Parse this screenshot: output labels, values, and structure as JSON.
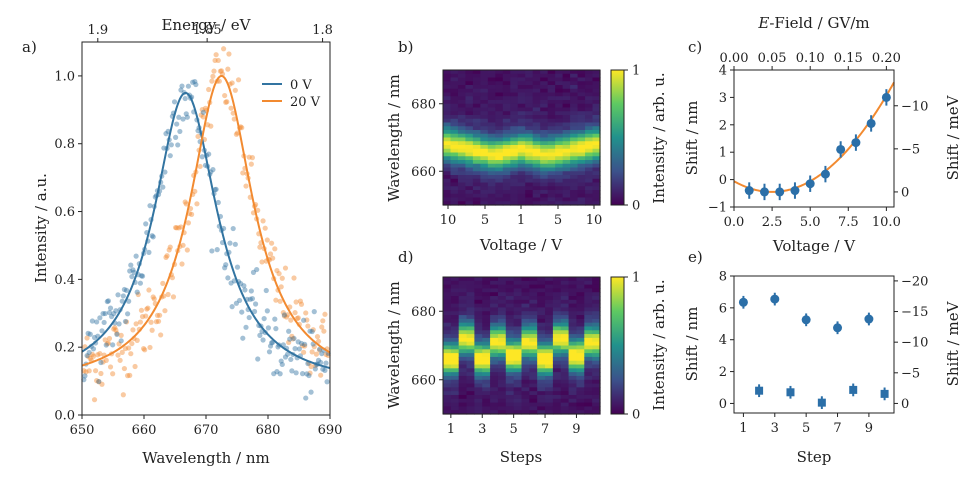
{
  "chart_data": [
    {
      "panel": "a)",
      "type": "scatter",
      "xlabel": "Wavelength / nm",
      "ylabel": "Intensity / a.u.",
      "x2label": "Energy / eV",
      "xlim": [
        650,
        690
      ],
      "ylim": [
        0.0,
        1.1
      ],
      "xticks": [
        650,
        660,
        670,
        680,
        690
      ],
      "yticks": [
        0.0,
        0.2,
        0.4,
        0.6,
        0.8,
        1.0
      ],
      "ytick_labels": [
        "0.0",
        "0.2",
        "0.4",
        "0.6",
        "0.8",
        "1.0"
      ],
      "x2ticks": [
        1.9,
        1.85,
        1.8
      ],
      "x2tick_labels": [
        "1.9",
        "1.85",
        "1.8"
      ],
      "legend_position": "top-right",
      "series": [
        {
          "name": "0 V",
          "color": "#3274a1",
          "peak_wavelength": 666.7,
          "peak_intensity": 0.95,
          "fwhm": 12.5,
          "baseline": 0.08
        },
        {
          "name": "20 V",
          "color": "#f28a30",
          "peak_wavelength": 672.5,
          "peak_intensity": 1.0,
          "fwhm": 12.5,
          "baseline": 0.08
        }
      ]
    },
    {
      "panel": "b)",
      "type": "heatmap",
      "xlabel": "Voltage / V",
      "ylabel": "Wavelength / nm",
      "colorbar_label": "Intensity / arb. u.",
      "ylim": [
        650,
        690
      ],
      "yticks": [
        660,
        680
      ],
      "xtick_labels": [
        "10",
        "5",
        "1",
        "5",
        "10"
      ],
      "colorbar_ticks": [
        "0",
        "1"
      ],
      "columns": 21,
      "peak_profile": [
        668,
        667.5,
        667,
        666.5,
        666,
        665.5,
        665,
        665,
        665.5,
        666,
        666.5,
        666,
        665.5,
        665,
        665,
        665.5,
        666,
        666.5,
        667,
        667.5,
        668
      ]
    },
    {
      "panel": "c)",
      "type": "scatter",
      "xlabel": "Voltage / V",
      "ylabel": "Shift / nm",
      "y2label": "Shift / meV",
      "x2label": "E-Field / GV/m",
      "x2label_italic": "E",
      "x2label_rest": "-Field / GV/m",
      "xlim": [
        0,
        10.5
      ],
      "ylim": [
        -1,
        4
      ],
      "xticks": [
        0.0,
        2.5,
        5.0,
        7.5,
        10.0
      ],
      "xtick_labels": [
        "0.0",
        "2.5",
        "5.0",
        "7.5",
        "10.0"
      ],
      "yticks": [
        -1,
        0,
        1,
        2,
        3,
        4
      ],
      "ytick_labels": [
        "−1",
        "0",
        "1",
        "2",
        "3",
        "4"
      ],
      "y2ticks": [
        0,
        -5,
        -10
      ],
      "y2tick_labels": [
        "0",
        "−5",
        "−10"
      ],
      "x2ticks": [
        0.0,
        0.05,
        0.1,
        0.15,
        0.2
      ],
      "x2tick_labels": [
        "0.00",
        "0.05",
        "0.10",
        "0.15",
        "0.20"
      ],
      "x": [
        1,
        2,
        3,
        4,
        5,
        6,
        7,
        8,
        9,
        10
      ],
      "y": [
        -0.4,
        -0.45,
        -0.45,
        -0.4,
        -0.15,
        0.2,
        1.1,
        1.35,
        2.05,
        3.0
      ],
      "yerr": [
        0.3,
        0.3,
        0.3,
        0.3,
        0.3,
        0.3,
        0.3,
        0.3,
        0.3,
        0.3
      ],
      "fit": {
        "type": "quadratic",
        "a": 0.0625,
        "x0": 2.5,
        "c": -0.45
      },
      "marker_color": "#2b6fa8",
      "fit_color": "#f28a30"
    },
    {
      "panel": "d)",
      "type": "heatmap",
      "xlabel": "Steps",
      "ylabel": "Wavelength / nm",
      "colorbar_label": "Intensity / arb. u.",
      "ylim": [
        650,
        690
      ],
      "yticks": [
        660,
        680
      ],
      "xticks": [
        1,
        3,
        5,
        7,
        9
      ],
      "xtick_labels": [
        "1",
        "3",
        "5",
        "7",
        "9"
      ],
      "colorbar_ticks": [
        "0",
        "1"
      ],
      "columns": 20,
      "step_peaks": [
        666,
        672,
        666,
        671,
        667,
        671,
        666,
        672,
        667,
        671
      ]
    },
    {
      "panel": "e)",
      "type": "scatter",
      "xlabel": "Step",
      "ylabel": "Shift / nm",
      "y2label": "Shift / meV",
      "xlim": [
        0.4,
        10.6
      ],
      "ylim": [
        -0.6,
        8
      ],
      "xticks": [
        1,
        3,
        5,
        7,
        9
      ],
      "xtick_labels": [
        "1",
        "3",
        "5",
        "7",
        "9"
      ],
      "yticks": [
        0,
        2,
        4,
        6,
        8
      ],
      "ytick_labels": [
        "0",
        "2",
        "4",
        "6",
        "8"
      ],
      "y2ticks": [
        0,
        -5,
        -10,
        -15,
        -20
      ],
      "y2tick_labels": [
        "0",
        "−5",
        "−10",
        "−15",
        "−20"
      ],
      "x": [
        1,
        2,
        3,
        4,
        5,
        6,
        7,
        8,
        9,
        10
      ],
      "y": [
        6.35,
        0.8,
        6.55,
        0.7,
        5.25,
        0.05,
        4.75,
        0.85,
        5.3,
        0.6
      ],
      "yerr": [
        0.4,
        0.4,
        0.4,
        0.4,
        0.4,
        0.4,
        0.4,
        0.4,
        0.4,
        0.4
      ],
      "marker_color": "#2b6fa8"
    }
  ]
}
